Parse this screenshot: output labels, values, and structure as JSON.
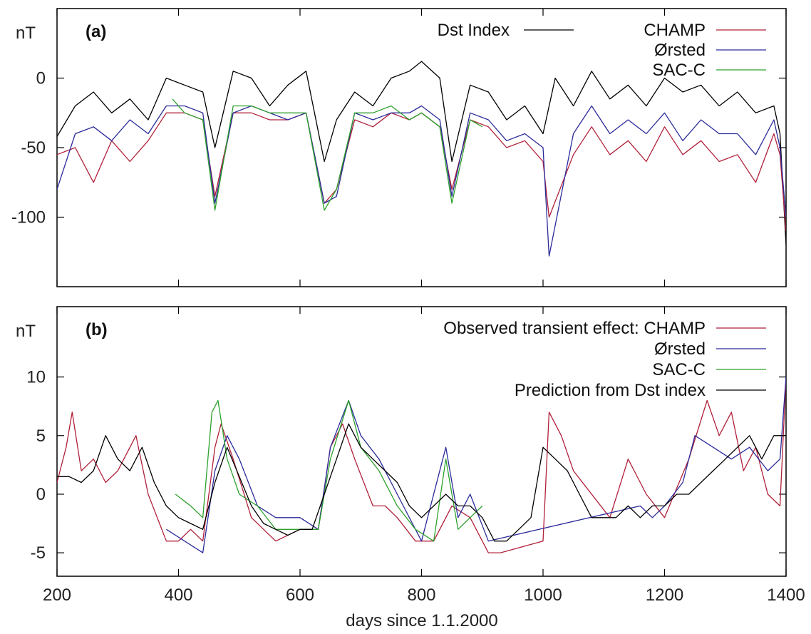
{
  "chart_data": [
    {
      "type": "line",
      "panel": "(a)",
      "ylabel": "nT",
      "xlim": [
        200,
        1400
      ],
      "ylim": [
        -150,
        50
      ],
      "yticks": [
        0,
        -50,
        -100
      ],
      "xticks": [
        200,
        400,
        600,
        800,
        1000,
        1200,
        1400
      ],
      "legend": "top-right",
      "series": [
        {
          "name": "Dst Index",
          "color": "#000000",
          "x": [
            200,
            230,
            260,
            290,
            320,
            350,
            380,
            410,
            440,
            460,
            490,
            520,
            550,
            580,
            610,
            640,
            660,
            690,
            720,
            750,
            780,
            800,
            830,
            850,
            880,
            910,
            940,
            970,
            1000,
            1020,
            1050,
            1080,
            1110,
            1140,
            1170,
            1200,
            1230,
            1260,
            1290,
            1320,
            1350,
            1380,
            1390,
            1400
          ],
          "y": [
            -42,
            -20,
            -10,
            -25,
            -15,
            -30,
            0,
            -5,
            -10,
            -50,
            5,
            0,
            -20,
            -5,
            5,
            -60,
            -30,
            -10,
            -20,
            0,
            5,
            12,
            0,
            -60,
            -5,
            -10,
            -30,
            -20,
            -40,
            0,
            -20,
            5,
            -15,
            -5,
            -20,
            0,
            -10,
            -5,
            -20,
            -10,
            -25,
            -20,
            -40,
            -120
          ]
        },
        {
          "name": "CHAMP",
          "color": "#b0203a",
          "x": [
            200,
            230,
            260,
            290,
            320,
            350,
            380,
            410,
            440,
            460,
            490,
            520,
            550,
            580,
            610,
            640,
            660,
            690,
            720,
            750,
            780,
            800,
            830,
            850,
            880,
            910,
            940,
            970,
            1000,
            1010,
            1050,
            1080,
            1110,
            1140,
            1170,
            1200,
            1230,
            1260,
            1290,
            1320,
            1350,
            1380,
            1390,
            1400
          ],
          "y": [
            -55,
            -50,
            -75,
            -45,
            -60,
            -45,
            -25,
            -25,
            -30,
            -85,
            -25,
            -25,
            -30,
            -30,
            -25,
            -90,
            -80,
            -30,
            -35,
            -25,
            -30,
            -25,
            -35,
            -80,
            -30,
            -35,
            -50,
            -45,
            -60,
            -100,
            -55,
            -35,
            -55,
            -45,
            -60,
            -35,
            -55,
            -45,
            -60,
            -55,
            -75,
            -40,
            -55,
            -110
          ]
        },
        {
          "name": "Ørsted",
          "color": "#2a2a9a",
          "x": [
            200,
            230,
            260,
            290,
            320,
            350,
            380,
            410,
            440,
            460,
            490,
            520,
            550,
            580,
            610,
            640,
            660,
            690,
            720,
            750,
            780,
            800,
            830,
            850,
            880,
            910,
            940,
            970,
            1000,
            1010,
            1050,
            1080,
            1110,
            1140,
            1170,
            1200,
            1230,
            1260,
            1290,
            1320,
            1350,
            1380,
            1390,
            1400
          ],
          "y": [
            -80,
            -40,
            -35,
            -45,
            -30,
            -40,
            -20,
            -20,
            -25,
            -90,
            -25,
            -20,
            -25,
            -30,
            -25,
            -90,
            -85,
            -25,
            -30,
            -25,
            -25,
            -20,
            -30,
            -85,
            -25,
            -30,
            -45,
            -40,
            -50,
            -128,
            -40,
            -20,
            -40,
            -30,
            -40,
            -25,
            -45,
            -30,
            -40,
            -40,
            -55,
            -30,
            -50,
            -100
          ]
        },
        {
          "name": "SAC-C",
          "color": "#2ca02c",
          "x": [
            390,
            410,
            440,
            460,
            490,
            520,
            550,
            580,
            610,
            640,
            660,
            690,
            720,
            750,
            780,
            800,
            830,
            850,
            880,
            900
          ],
          "y": [
            -15,
            -25,
            -30,
            -95,
            -20,
            -20,
            -25,
            -25,
            -25,
            -95,
            -80,
            -25,
            -25,
            -20,
            -30,
            -25,
            -35,
            -90,
            -30,
            -35
          ]
        }
      ]
    },
    {
      "type": "line",
      "panel": "(b)",
      "ylabel": "nT",
      "xlabel": "days since 1.1.2000",
      "xlim": [
        200,
        1400
      ],
      "ylim": [
        -7,
        16
      ],
      "yticks": [
        10,
        5,
        0,
        -5
      ],
      "xticks": [
        200,
        400,
        600,
        800,
        1000,
        1200,
        1400
      ],
      "legend": "top-right",
      "series": [
        {
          "name": "Observed transient effect: CHAMP",
          "color": "#b0203a",
          "x": [
            200,
            215,
            225,
            240,
            260,
            280,
            300,
            330,
            350,
            380,
            400,
            420,
            440,
            460,
            470,
            490,
            520,
            560,
            600,
            630,
            650,
            670,
            690,
            720,
            740,
            760,
            790,
            820,
            850,
            880,
            910,
            930,
            1000,
            1010,
            1030,
            1050,
            1110,
            1140,
            1170,
            1200,
            1240,
            1270,
            1290,
            1310,
            1330,
            1350,
            1370,
            1390,
            1400
          ],
          "y": [
            1,
            4,
            7,
            2,
            3,
            1,
            2,
            5,
            0,
            -4,
            -4,
            -3,
            -4,
            4,
            6,
            3,
            -2,
            -4,
            -3,
            -3,
            4,
            6,
            3,
            -1,
            -1,
            -2,
            -4,
            -4,
            -1,
            -2,
            -5,
            -5,
            -4,
            7,
            5,
            2,
            -2,
            3,
            0,
            -2,
            3,
            8,
            5,
            7,
            2,
            4,
            0,
            -1,
            10
          ]
        },
        {
          "name": "Ørsted",
          "color": "#2a2a9a",
          "x": [
            380,
            410,
            440,
            460,
            480,
            500,
            530,
            560,
            600,
            630,
            650,
            680,
            700,
            730,
            760,
            800,
            840,
            860,
            880,
            910,
            1160,
            1180,
            1200,
            1230,
            1250,
            1280,
            1310,
            1340,
            1370,
            1390,
            1400
          ],
          "y": [
            -3,
            -4,
            -5,
            2,
            5,
            3,
            -1,
            -2,
            -2,
            -3,
            4,
            8,
            5,
            3,
            0,
            -4,
            4,
            -2,
            0,
            -4,
            -1,
            -2,
            -1,
            1,
            5,
            4,
            3,
            4,
            2,
            3,
            10
          ]
        },
        {
          "name": "SAC-C",
          "color": "#2ca02c",
          "x": [
            395,
            420,
            440,
            455,
            465,
            480,
            500,
            530,
            560,
            600,
            630,
            650,
            680,
            700,
            730,
            760,
            790,
            820,
            840,
            860,
            880,
            900
          ],
          "y": [
            0,
            -1,
            -2,
            7,
            8,
            3,
            0,
            -1,
            -3,
            -3,
            -3,
            3,
            8,
            4,
            2,
            -1,
            -3,
            -4,
            3,
            -3,
            -2,
            -1
          ]
        },
        {
          "name": "Prediction from Dst index",
          "color": "#000000",
          "x": [
            200,
            220,
            240,
            260,
            280,
            300,
            320,
            340,
            360,
            380,
            400,
            420,
            440,
            460,
            480,
            500,
            520,
            540,
            560,
            580,
            600,
            620,
            640,
            660,
            680,
            700,
            720,
            740,
            760,
            780,
            800,
            820,
            840,
            860,
            880,
            900,
            920,
            940,
            960,
            980,
            1000,
            1020,
            1040,
            1060,
            1080,
            1100,
            1120,
            1140,
            1160,
            1180,
            1200,
            1220,
            1240,
            1260,
            1280,
            1300,
            1320,
            1340,
            1360,
            1380,
            1400
          ],
          "y": [
            1.5,
            1.5,
            1,
            2,
            5,
            3,
            2,
            4,
            1,
            -1,
            -2,
            -2.5,
            -3,
            1,
            4,
            1.5,
            -1,
            -2.5,
            -3,
            -3.5,
            -3,
            -3,
            0,
            3,
            6,
            4,
            3,
            2,
            1,
            -1,
            -2,
            -1,
            0,
            -1,
            -1,
            -2,
            -4,
            -4,
            -3,
            -2,
            4,
            3,
            2,
            0,
            -2,
            -2,
            -2,
            -1,
            -2,
            -1,
            -1,
            0,
            0,
            1,
            2,
            3,
            4,
            5,
            3,
            5,
            5
          ]
        }
      ]
    }
  ]
}
